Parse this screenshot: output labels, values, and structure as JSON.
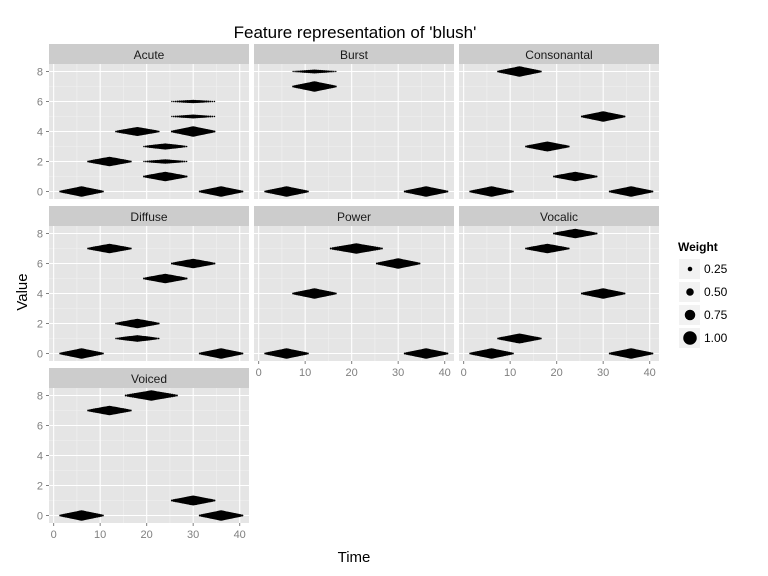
{
  "chart_data": {
    "type": "scatter",
    "title": "Feature representation of 'blush'",
    "xlabel": "Time",
    "ylabel": "Value",
    "xlim": [
      -1,
      42
    ],
    "ylim": [
      -0.5,
      8.5
    ],
    "x_ticks": [
      0,
      10,
      20,
      30,
      40
    ],
    "y_ticks": [
      0,
      2,
      4,
      6,
      8
    ],
    "grid": true,
    "ncol": 3,
    "legend": {
      "title": "Weight",
      "position": "right",
      "entries": [
        {
          "label": "0.25",
          "value": 0.25
        },
        {
          "label": "0.50",
          "value": 0.5
        },
        {
          "label": "0.75",
          "value": 0.75
        },
        {
          "label": "1.00",
          "value": 1.0
        }
      ]
    },
    "facets": [
      {
        "name": "Acute",
        "clusters": [
          {
            "center": 6,
            "y": 0,
            "weight": 1.0
          },
          {
            "center": 36,
            "y": 0,
            "weight": 1.0
          },
          {
            "center": 24,
            "y": 1,
            "weight": 0.9
          },
          {
            "center": 12,
            "y": 2,
            "weight": 0.9
          },
          {
            "center": 24,
            "y": 2,
            "weight": 0.35
          },
          {
            "center": 24,
            "y": 3,
            "weight": 0.55
          },
          {
            "center": 18,
            "y": 4,
            "weight": 0.85
          },
          {
            "center": 30,
            "y": 4,
            "weight": 1.0
          },
          {
            "center": 30,
            "y": 5,
            "weight": 0.3
          },
          {
            "center": 30,
            "y": 6,
            "weight": 0.25
          }
        ]
      },
      {
        "name": "Burst",
        "clusters": [
          {
            "center": 6,
            "y": 0,
            "weight": 1.0
          },
          {
            "center": 36,
            "y": 0,
            "weight": 1.0
          },
          {
            "center": 12,
            "y": 7,
            "weight": 1.0
          },
          {
            "center": 12,
            "y": 8,
            "weight": 0.3
          }
        ]
      },
      {
        "name": "Consonantal",
        "clusters": [
          {
            "center": 6,
            "y": 0,
            "weight": 1.0
          },
          {
            "center": 36,
            "y": 0,
            "weight": 1.0
          },
          {
            "center": 24,
            "y": 1,
            "weight": 0.9
          },
          {
            "center": 18,
            "y": 3,
            "weight": 0.95
          },
          {
            "center": 30,
            "y": 5,
            "weight": 1.0
          },
          {
            "center": 12,
            "y": 8,
            "weight": 1.0
          }
        ]
      },
      {
        "name": "Diffuse",
        "clusters": [
          {
            "center": 6,
            "y": 0,
            "weight": 1.0
          },
          {
            "center": 36,
            "y": 0,
            "weight": 1.0
          },
          {
            "center": 18,
            "y": 1,
            "weight": 0.6
          },
          {
            "center": 18,
            "y": 2,
            "weight": 0.9
          },
          {
            "center": 24,
            "y": 5,
            "weight": 0.9
          },
          {
            "center": 30,
            "y": 6,
            "weight": 0.9
          },
          {
            "center": 12,
            "y": 7,
            "weight": 0.9
          }
        ]
      },
      {
        "name": "Power",
        "clusters": [
          {
            "center": 6,
            "y": 0,
            "weight": 1.0
          },
          {
            "center": 36,
            "y": 0,
            "weight": 1.0
          },
          {
            "center": 12,
            "y": 4,
            "weight": 1.0
          },
          {
            "center": 30,
            "y": 6,
            "weight": 1.0
          },
          {
            "center": 21,
            "y": 7,
            "weight": 1.0,
            "halfwidth": 6
          }
        ]
      },
      {
        "name": "Vocalic",
        "clusters": [
          {
            "center": 6,
            "y": 0,
            "weight": 1.0
          },
          {
            "center": 36,
            "y": 0,
            "weight": 1.0
          },
          {
            "center": 12,
            "y": 1,
            "weight": 0.95
          },
          {
            "center": 30,
            "y": 4,
            "weight": 1.0
          },
          {
            "center": 18,
            "y": 7,
            "weight": 0.9
          },
          {
            "center": 24,
            "y": 8,
            "weight": 0.9
          }
        ]
      },
      {
        "name": "Voiced",
        "clusters": [
          {
            "center": 6,
            "y": 0,
            "weight": 1.0
          },
          {
            "center": 36,
            "y": 0,
            "weight": 1.0
          },
          {
            "center": 30,
            "y": 1,
            "weight": 0.95
          },
          {
            "center": 12,
            "y": 7,
            "weight": 0.9
          },
          {
            "center": 21,
            "y": 8,
            "weight": 1.0,
            "halfwidth": 6
          }
        ]
      }
    ]
  }
}
